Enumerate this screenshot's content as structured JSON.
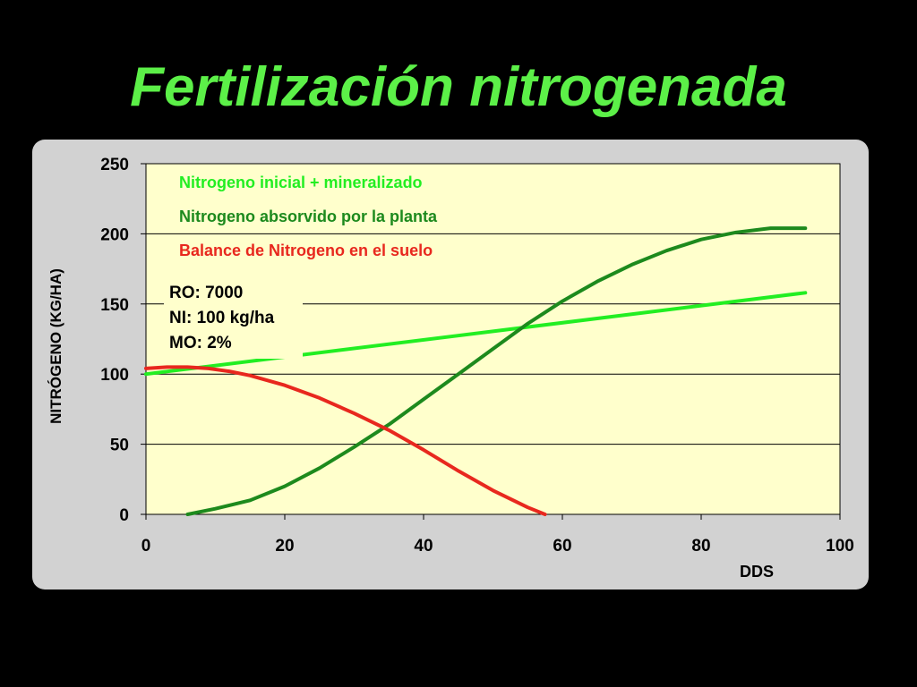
{
  "slide": {
    "title": "Fertilización nitrogenada"
  },
  "colors": {
    "background": "#000000",
    "title": "#5cf048",
    "panel": "#d2d2d2",
    "plot_area": "#ffffcc",
    "light_green": "#22ee22",
    "dark_green": "#1d8a1d",
    "red": "#e8281e"
  },
  "chart_data": {
    "type": "line",
    "xlabel": "DDS",
    "ylabel": "NITRÓGENO (KG/HA)",
    "xlim": [
      0,
      100
    ],
    "ylim": [
      0,
      250
    ],
    "x_ticks": [
      0,
      20,
      40,
      60,
      80,
      100
    ],
    "y_ticks": [
      0,
      50,
      100,
      150,
      200,
      250
    ],
    "grid": "horizontal",
    "legend_position": "top-left",
    "series": [
      {
        "name": "Nitrogeno inicial + mineralizado",
        "color": "#22ee22",
        "x": [
          0,
          95
        ],
        "y": [
          100,
          158
        ]
      },
      {
        "name": "Nitrogeno absorvido por la planta",
        "color": "#1d8a1d",
        "x": [
          6,
          10,
          15,
          20,
          25,
          30,
          35,
          40,
          45,
          50,
          55,
          60,
          65,
          70,
          75,
          80,
          85,
          90,
          95
        ],
        "y": [
          0,
          4,
          10,
          20,
          33,
          48,
          64,
          82,
          100,
          118,
          136,
          152,
          166,
          178,
          188,
          196,
          201,
          204,
          204
        ]
      },
      {
        "name": "Balance de Nitrogeno en el suelo",
        "color": "#e8281e",
        "x": [
          0,
          3,
          6,
          9,
          12,
          15,
          20,
          25,
          30,
          35,
          40,
          45,
          50,
          55,
          57.5
        ],
        "y": [
          104,
          105,
          105,
          104,
          102,
          99,
          92,
          83,
          72,
          60,
          46,
          31,
          17,
          5,
          0
        ]
      }
    ],
    "annotation": {
      "lines": [
        "RO: 7000",
        "NI: 100 kg/ha",
        "MO: 2%"
      ]
    }
  }
}
